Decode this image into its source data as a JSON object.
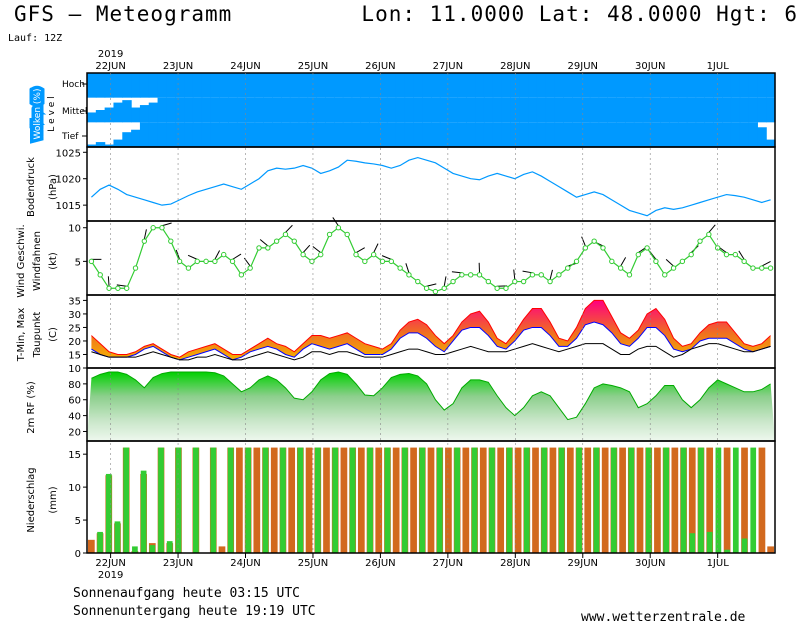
{
  "header": {
    "title": "GFS – Meteogramm",
    "location": "Lon: 11.0000 Lat: 48.0000 Hgt: 6",
    "run": "Lauf: 12Z"
  },
  "footer": {
    "sunrise": "Sonnenaufgang heute 03:15 UTC",
    "sunset": "Sonnenuntergang heute 19:19 UTC",
    "website": "www.wetterzentrale.de"
  },
  "colors": {
    "cloud_sky": "#0099ff",
    "pressure_line": "#0099ff",
    "wind_line": "#33cc33",
    "tmax": "#ff0000",
    "tmin": "#0000ff",
    "temp_fill_low": "#f5a000",
    "temp_fill_high": "#ff0080",
    "humidity_fill": "#00cc00",
    "precip_green": "#33cc33",
    "precip_orange": "#d2691e"
  },
  "chart_data": {
    "type": "meteogram",
    "year": "2019",
    "x_labels": [
      "22JUN",
      "23JUN",
      "24JUN",
      "25JUN",
      "26JUN",
      "27JUN",
      "28JUN",
      "29JUN",
      "30JUN",
      "1JUL"
    ],
    "panels": [
      {
        "key": "clouds",
        "ylabel": "Wolken (%)",
        "ylabel2": "L e v e l",
        "levels": [
          "Hoch",
          "Mittel",
          "Tief"
        ],
        "cloud_cover_pct": {
          "low": [
            10,
            20,
            10,
            30,
            60,
            70,
            100,
            100,
            100,
            100,
            100,
            100,
            100,
            100,
            100,
            100,
            100,
            100,
            100,
            100,
            100,
            100,
            100,
            100,
            100,
            100,
            100,
            100,
            100,
            100,
            100,
            100,
            100,
            100,
            100,
            100,
            100,
            100,
            100,
            100,
            100,
            100,
            100,
            100,
            100,
            100,
            100,
            100,
            100,
            100,
            100,
            100,
            100,
            100,
            100,
            100,
            100,
            100,
            100,
            100,
            100,
            100,
            100,
            100,
            100,
            100,
            100,
            100,
            100,
            100,
            100,
            100,
            100,
            100,
            100,
            100,
            80,
            30
          ],
          "mid": [
            40,
            50,
            60,
            80,
            90,
            60,
            70,
            80,
            100,
            100,
            100,
            100,
            100,
            100,
            100,
            100,
            100,
            100,
            100,
            100,
            100,
            100,
            100,
            100,
            100,
            100,
            100,
            100,
            100,
            100,
            100,
            100,
            100,
            100,
            100,
            100,
            100,
            100,
            100,
            100,
            100,
            100,
            100,
            100,
            100,
            100,
            100,
            100,
            100,
            100,
            100,
            100,
            100,
            100,
            100,
            100,
            100,
            100,
            100,
            100,
            100,
            100,
            100,
            100,
            100,
            100,
            100,
            100,
            100,
            100,
            100,
            100,
            100,
            100,
            100,
            100,
            100,
            100
          ],
          "high": [
            100,
            100,
            100,
            100,
            100,
            100,
            100,
            100,
            100,
            100,
            100,
            100,
            100,
            100,
            100,
            100,
            100,
            100,
            100,
            100,
            100,
            100,
            100,
            100,
            100,
            100,
            100,
            100,
            100,
            100,
            100,
            100,
            100,
            100,
            100,
            100,
            100,
            100,
            100,
            100,
            100,
            100,
            100,
            100,
            100,
            100,
            100,
            100,
            100,
            100,
            100,
            100,
            100,
            100,
            100,
            100,
            100,
            100,
            100,
            100,
            100,
            100,
            100,
            100,
            100,
            100,
            100,
            100,
            100,
            100,
            100,
            100,
            100,
            100,
            100,
            100,
            100,
            100
          ]
        }
      },
      {
        "key": "pressure",
        "ylabel": "Bodendruck",
        "unit": "(hPa)",
        "ylim": [
          1012,
          1026
        ],
        "yticks": [
          1015,
          1020,
          1025
        ],
        "values": [
          1016.5,
          1018,
          1018.8,
          1018,
          1017,
          1016.5,
          1016,
          1015.5,
          1015,
          1015.2,
          1016,
          1016.8,
          1017.5,
          1018,
          1018.5,
          1019,
          1018.5,
          1018,
          1019,
          1020,
          1021.5,
          1022,
          1021.8,
          1022,
          1022.5,
          1022,
          1021,
          1021.5,
          1022.2,
          1023.5,
          1023.3,
          1023,
          1022.8,
          1022.5,
          1022,
          1022.5,
          1023.5,
          1024,
          1023.5,
          1023,
          1022,
          1021,
          1020.5,
          1020,
          1019.8,
          1020.5,
          1021,
          1020.5,
          1020,
          1020.8,
          1021.3,
          1020.5,
          1019.5,
          1018.5,
          1017.5,
          1016.5,
          1017,
          1017.5,
          1017,
          1016,
          1015,
          1014,
          1013.5,
          1013,
          1014,
          1014.5,
          1014.2,
          1014.5,
          1015,
          1015.5,
          1016,
          1016.5,
          1017,
          1016.8,
          1016.5,
          1016,
          1015.5,
          1016
        ],
        "show_points": false
      },
      {
        "key": "wind",
        "ylabel": "Wind Geschwi.",
        "ylabel2": "Windfahnen",
        "unit": "(kt)",
        "ylim": [
          0,
          11
        ],
        "yticks": [
          5,
          10
        ],
        "values": [
          5,
          3,
          1,
          1,
          1,
          4,
          8,
          10,
          10,
          8,
          5,
          4,
          5,
          5,
          5,
          6,
          5,
          3,
          4,
          7,
          7,
          8,
          9,
          8,
          6,
          5,
          6,
          9,
          10,
          9,
          6,
          5,
          6,
          5,
          5,
          4,
          3,
          2,
          1,
          0.5,
          1,
          2,
          3,
          3,
          3,
          2,
          1,
          1,
          2,
          2,
          3,
          3,
          2,
          3,
          4,
          5,
          7,
          8,
          7,
          5,
          4,
          3,
          6,
          7,
          5,
          3,
          4,
          5,
          6,
          8,
          9,
          7,
          6,
          6,
          5,
          4,
          4,
          4
        ],
        "show_points": true
      },
      {
        "key": "temperature",
        "ylabel": "T-Min, Max",
        "ylabel2": "Taupunkt",
        "unit": "(C)",
        "ylim": [
          10,
          37
        ],
        "yticks": [
          10,
          15,
          20,
          25,
          30,
          35
        ],
        "tmax": [
          22,
          19,
          16,
          15,
          15,
          16,
          18,
          19,
          17,
          15,
          14,
          16,
          17,
          18,
          19,
          17,
          15,
          15,
          17,
          19,
          21,
          19,
          18,
          16,
          19,
          22,
          22,
          21,
          22,
          23,
          21,
          19,
          18,
          17,
          19,
          24,
          27,
          28,
          26,
          22,
          19,
          22,
          27,
          30,
          31,
          27,
          21,
          19,
          23,
          28,
          32,
          32,
          27,
          21,
          20,
          25,
          32,
          35,
          35,
          29,
          23,
          21,
          24,
          30,
          32,
          28,
          21,
          18,
          19,
          23,
          26,
          27,
          27,
          23,
          19,
          18,
          19,
          22
        ],
        "tmin": [
          17,
          15,
          14,
          14,
          14,
          15,
          17,
          18,
          16,
          14,
          13,
          14,
          15,
          16,
          17,
          15,
          13,
          14,
          16,
          17,
          18,
          17,
          15,
          14,
          17,
          19,
          18,
          17,
          18,
          19,
          17,
          15,
          15,
          15,
          17,
          21,
          23,
          23,
          21,
          18,
          16,
          20,
          24,
          25,
          25,
          22,
          18,
          17,
          20,
          24,
          25,
          25,
          22,
          18,
          18,
          21,
          26,
          27,
          26,
          23,
          19,
          18,
          21,
          25,
          25,
          22,
          17,
          16,
          17,
          20,
          21,
          21,
          21,
          19,
          17,
          16,
          17,
          18
        ],
        "dewpoint": [
          16,
          15,
          14,
          14,
          14,
          14,
          15,
          16,
          15,
          14,
          13,
          13,
          14,
          14,
          15,
          14,
          13,
          13,
          14,
          15,
          16,
          15,
          14,
          13,
          14,
          16,
          16,
          15,
          16,
          16,
          15,
          14,
          14,
          14,
          15,
          16,
          17,
          17,
          16,
          15,
          15,
          16,
          17,
          18,
          17,
          16,
          16,
          16,
          17,
          18,
          19,
          18,
          17,
          16,
          17,
          18,
          19,
          19,
          19,
          17,
          15,
          15,
          17,
          18,
          18,
          16,
          14,
          15,
          17,
          18,
          19,
          19,
          18,
          17,
          16,
          16,
          17,
          18
        ]
      },
      {
        "key": "humidity",
        "ylabel": "2m RF (%)",
        "ylim": [
          8,
          100
        ],
        "yticks": [
          20,
          40,
          60,
          80
        ],
        "values": [
          87,
          92,
          95,
          95,
          92,
          85,
          75,
          88,
          93,
          95,
          95,
          95,
          95,
          95,
          94,
          90,
          80,
          70,
          75,
          85,
          90,
          85,
          75,
          62,
          60,
          70,
          85,
          93,
          95,
          92,
          80,
          66,
          65,
          75,
          88,
          92,
          93,
          90,
          80,
          60,
          47,
          55,
          75,
          85,
          85,
          82,
          65,
          50,
          40,
          50,
          65,
          70,
          65,
          50,
          35,
          38,
          55,
          75,
          80,
          78,
          75,
          70,
          50,
          55,
          65,
          78,
          78,
          60,
          50,
          60,
          75,
          85,
          80,
          75,
          70,
          70,
          73,
          80
        ]
      },
      {
        "key": "precipitation",
        "ylabel": "Niederschlag",
        "unit": "(mm)",
        "ylim": [
          0,
          17
        ],
        "yticks": [
          0,
          5,
          10,
          15
        ],
        "orange": [
          2,
          3,
          11.8,
          4.5,
          16,
          0.3,
          12,
          1.5,
          16,
          1.5,
          16,
          0,
          16,
          0,
          16,
          1,
          16,
          16,
          16,
          16,
          16,
          16,
          16,
          16,
          16,
          16,
          16,
          16,
          16,
          16,
          16,
          16,
          16,
          16,
          16,
          16,
          16,
          16,
          16,
          16,
          16,
          16,
          16,
          16,
          16,
          16,
          16,
          16,
          16,
          16,
          16,
          16,
          16,
          16,
          16,
          16,
          16,
          16,
          16,
          16,
          16,
          16,
          16,
          16,
          16,
          16,
          16,
          16,
          16,
          16,
          16,
          16,
          0,
          16,
          0,
          16,
          0,
          16,
          1
        ],
        "green": [
          0,
          3.2,
          12,
          4.8,
          16,
          1,
          12.5,
          1.2,
          16,
          1.8,
          16,
          0,
          16,
          0,
          16,
          0,
          16,
          0,
          16,
          0,
          16,
          0,
          16,
          0,
          16,
          0,
          16,
          0,
          16,
          0,
          16,
          0,
          16,
          0,
          16,
          0,
          16,
          0,
          16,
          0,
          16,
          0,
          16,
          0,
          16,
          0,
          16,
          0,
          16,
          0,
          16,
          0,
          16,
          0,
          16,
          0,
          16,
          0,
          16,
          0,
          16,
          0,
          16,
          0,
          16,
          0,
          16,
          0,
          16,
          3,
          16,
          3.2,
          16,
          0.5,
          16,
          2.2,
          16,
          0
        ]
      }
    ]
  }
}
